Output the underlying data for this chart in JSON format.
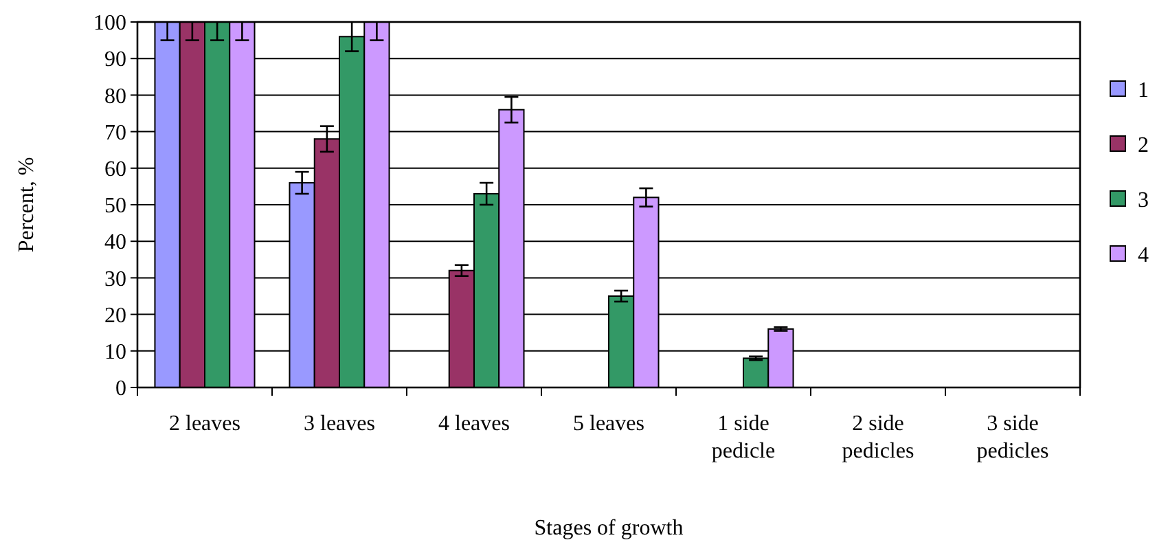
{
  "chart_data": {
    "type": "bar",
    "xlabel": "Stages of growth",
    "ylabel": "Percent, %",
    "categories": [
      "2 leaves",
      "3 leaves",
      "4 leaves",
      "5 leaves",
      "1 side pedicle",
      "2 side pedicles",
      "3 side pedicles"
    ],
    "series": [
      {
        "name": "1",
        "color": "#9999ff",
        "values": [
          100,
          56,
          0,
          0,
          0,
          0,
          0
        ],
        "errors": [
          [
            95,
            100
          ],
          3,
          null,
          null,
          null,
          null,
          null
        ]
      },
      {
        "name": "2",
        "color": "#993366",
        "values": [
          100,
          68,
          32,
          0,
          0,
          0,
          0
        ],
        "errors": [
          [
            95,
            100
          ],
          3.5,
          1.5,
          null,
          null,
          null,
          null
        ]
      },
      {
        "name": "3",
        "color": "#339966",
        "values": [
          100,
          96,
          53,
          25,
          8,
          0,
          0
        ],
        "errors": [
          [
            95,
            100
          ],
          [
            92,
            100
          ],
          3,
          1.5,
          0.5,
          null,
          null
        ]
      },
      {
        "name": "4",
        "color": "#cc99ff",
        "values": [
          100,
          100,
          76,
          52,
          16,
          0,
          0
        ],
        "errors": [
          [
            95,
            100
          ],
          [
            95,
            100
          ],
          3.5,
          2.5,
          0.5,
          null,
          null
        ]
      }
    ],
    "ylim": [
      0,
      100
    ],
    "yticks": [
      0,
      10,
      20,
      30,
      40,
      50,
      60,
      70,
      80,
      90,
      100
    ],
    "grid": "y",
    "legend": "right"
  }
}
